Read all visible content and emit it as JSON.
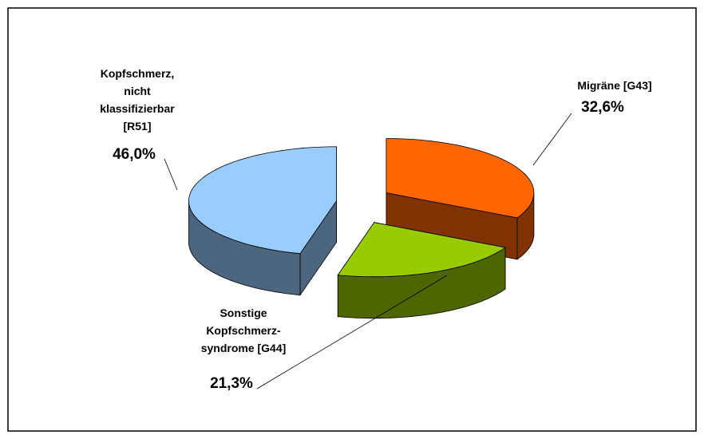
{
  "chart_data": {
    "type": "pie3d",
    "categories": [
      "Migräne [G43]",
      "Sonstige\nKopfschmerz-\nsyndrome [G44]",
      "Kopfschmerz,\nnicht\nklassifizierbar\n[R51]"
    ],
    "values": [
      32.6,
      21.3,
      46.0
    ],
    "value_labels": [
      "32,6%",
      "21,3%",
      "46,0%"
    ],
    "colors": [
      "#ff6600",
      "#99cc00",
      "#99ccff"
    ]
  }
}
